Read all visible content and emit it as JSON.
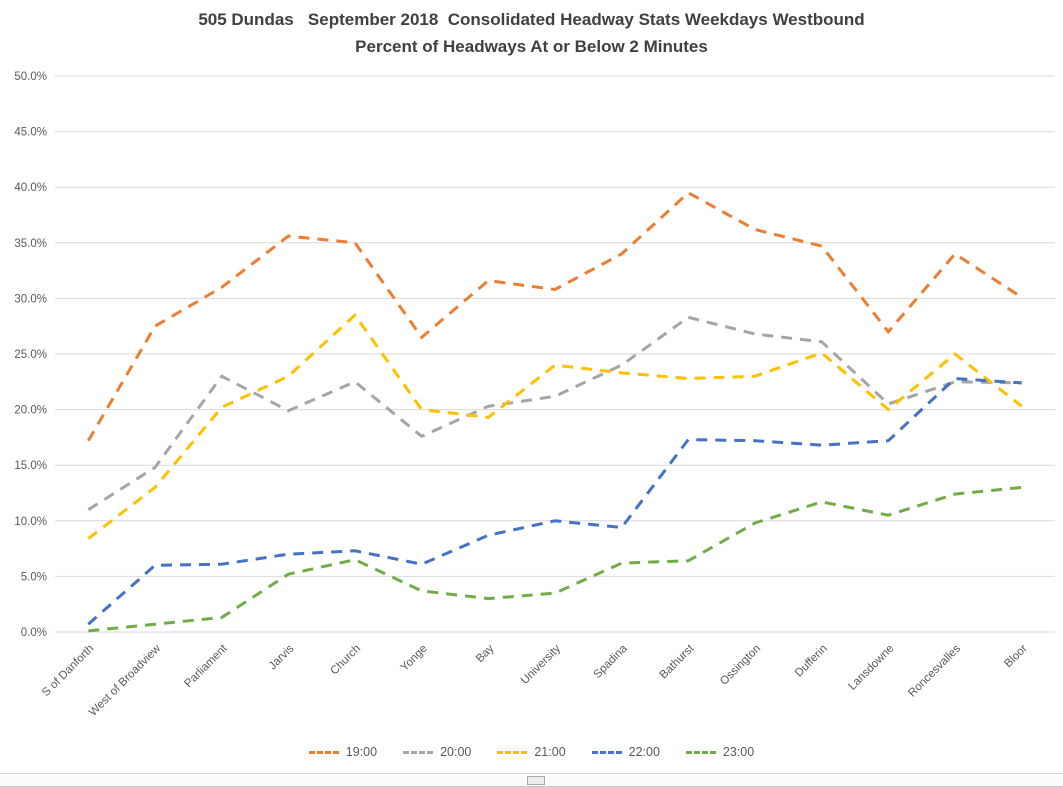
{
  "colors": {
    "gridline": "#D9D9D9",
    "axis_text": "#595959",
    "title_text": "#404040"
  },
  "chart_data": {
    "type": "line",
    "line_style": "dashed",
    "title_line1": "505 Dundas   September 2018  Consolidated Headway Stats Weekdays Westbound",
    "title_line2": "Percent of Headways At or Below 2 Minutes",
    "xlabel": "",
    "ylabel": "",
    "ylim": [
      0,
      50
    ],
    "y_tick_step": 5,
    "y_ticks": [
      "0.0%",
      "5.0%",
      "10.0%",
      "15.0%",
      "20.0%",
      "25.0%",
      "30.0%",
      "35.0%",
      "40.0%",
      "45.0%",
      "50.0%"
    ],
    "grid": true,
    "legend_position": "bottom",
    "categories": [
      "S of Danforth",
      "West of Broadview",
      "Parliament",
      "Jarvis",
      "Church",
      "Yonge",
      "Bay",
      "University",
      "Spadina",
      "Bathurst",
      "Ossington",
      "Dufferin",
      "Lansdowne",
      "Roncesvalles",
      "Bloor"
    ],
    "series": [
      {
        "name": "19:00",
        "color": "#ED7D31",
        "values": [
          17.2,
          27.5,
          31.0,
          35.6,
          35.0,
          26.5,
          31.6,
          30.8,
          34.0,
          39.5,
          36.2,
          34.7,
          27.0,
          34.0,
          30.1
        ]
      },
      {
        "name": "20:00",
        "color": "#A5A5A5",
        "values": [
          11.0,
          14.8,
          23.0,
          19.9,
          22.5,
          17.6,
          20.3,
          21.2,
          24.0,
          28.3,
          26.8,
          26.1,
          20.5,
          22.5,
          22.4
        ]
      },
      {
        "name": "21:00",
        "color": "#FFC000",
        "values": [
          8.4,
          13.0,
          20.2,
          23.0,
          28.5,
          20.0,
          19.3,
          24.0,
          23.3,
          22.8,
          23.0,
          25.1,
          20.0,
          25.0,
          20.3
        ]
      },
      {
        "name": "22:00",
        "color": "#4472C4",
        "values": [
          0.7,
          6.0,
          6.1,
          7.0,
          7.3,
          6.1,
          8.7,
          10.0,
          9.4,
          17.3,
          17.2,
          16.8,
          17.2,
          22.8,
          22.4
        ]
      },
      {
        "name": "23:00",
        "color": "#70AD47",
        "values": [
          0.1,
          0.7,
          1.3,
          5.2,
          6.5,
          3.7,
          3.0,
          3.5,
          6.2,
          6.4,
          9.8,
          11.7,
          10.5,
          12.4,
          13.0
        ]
      }
    ]
  }
}
